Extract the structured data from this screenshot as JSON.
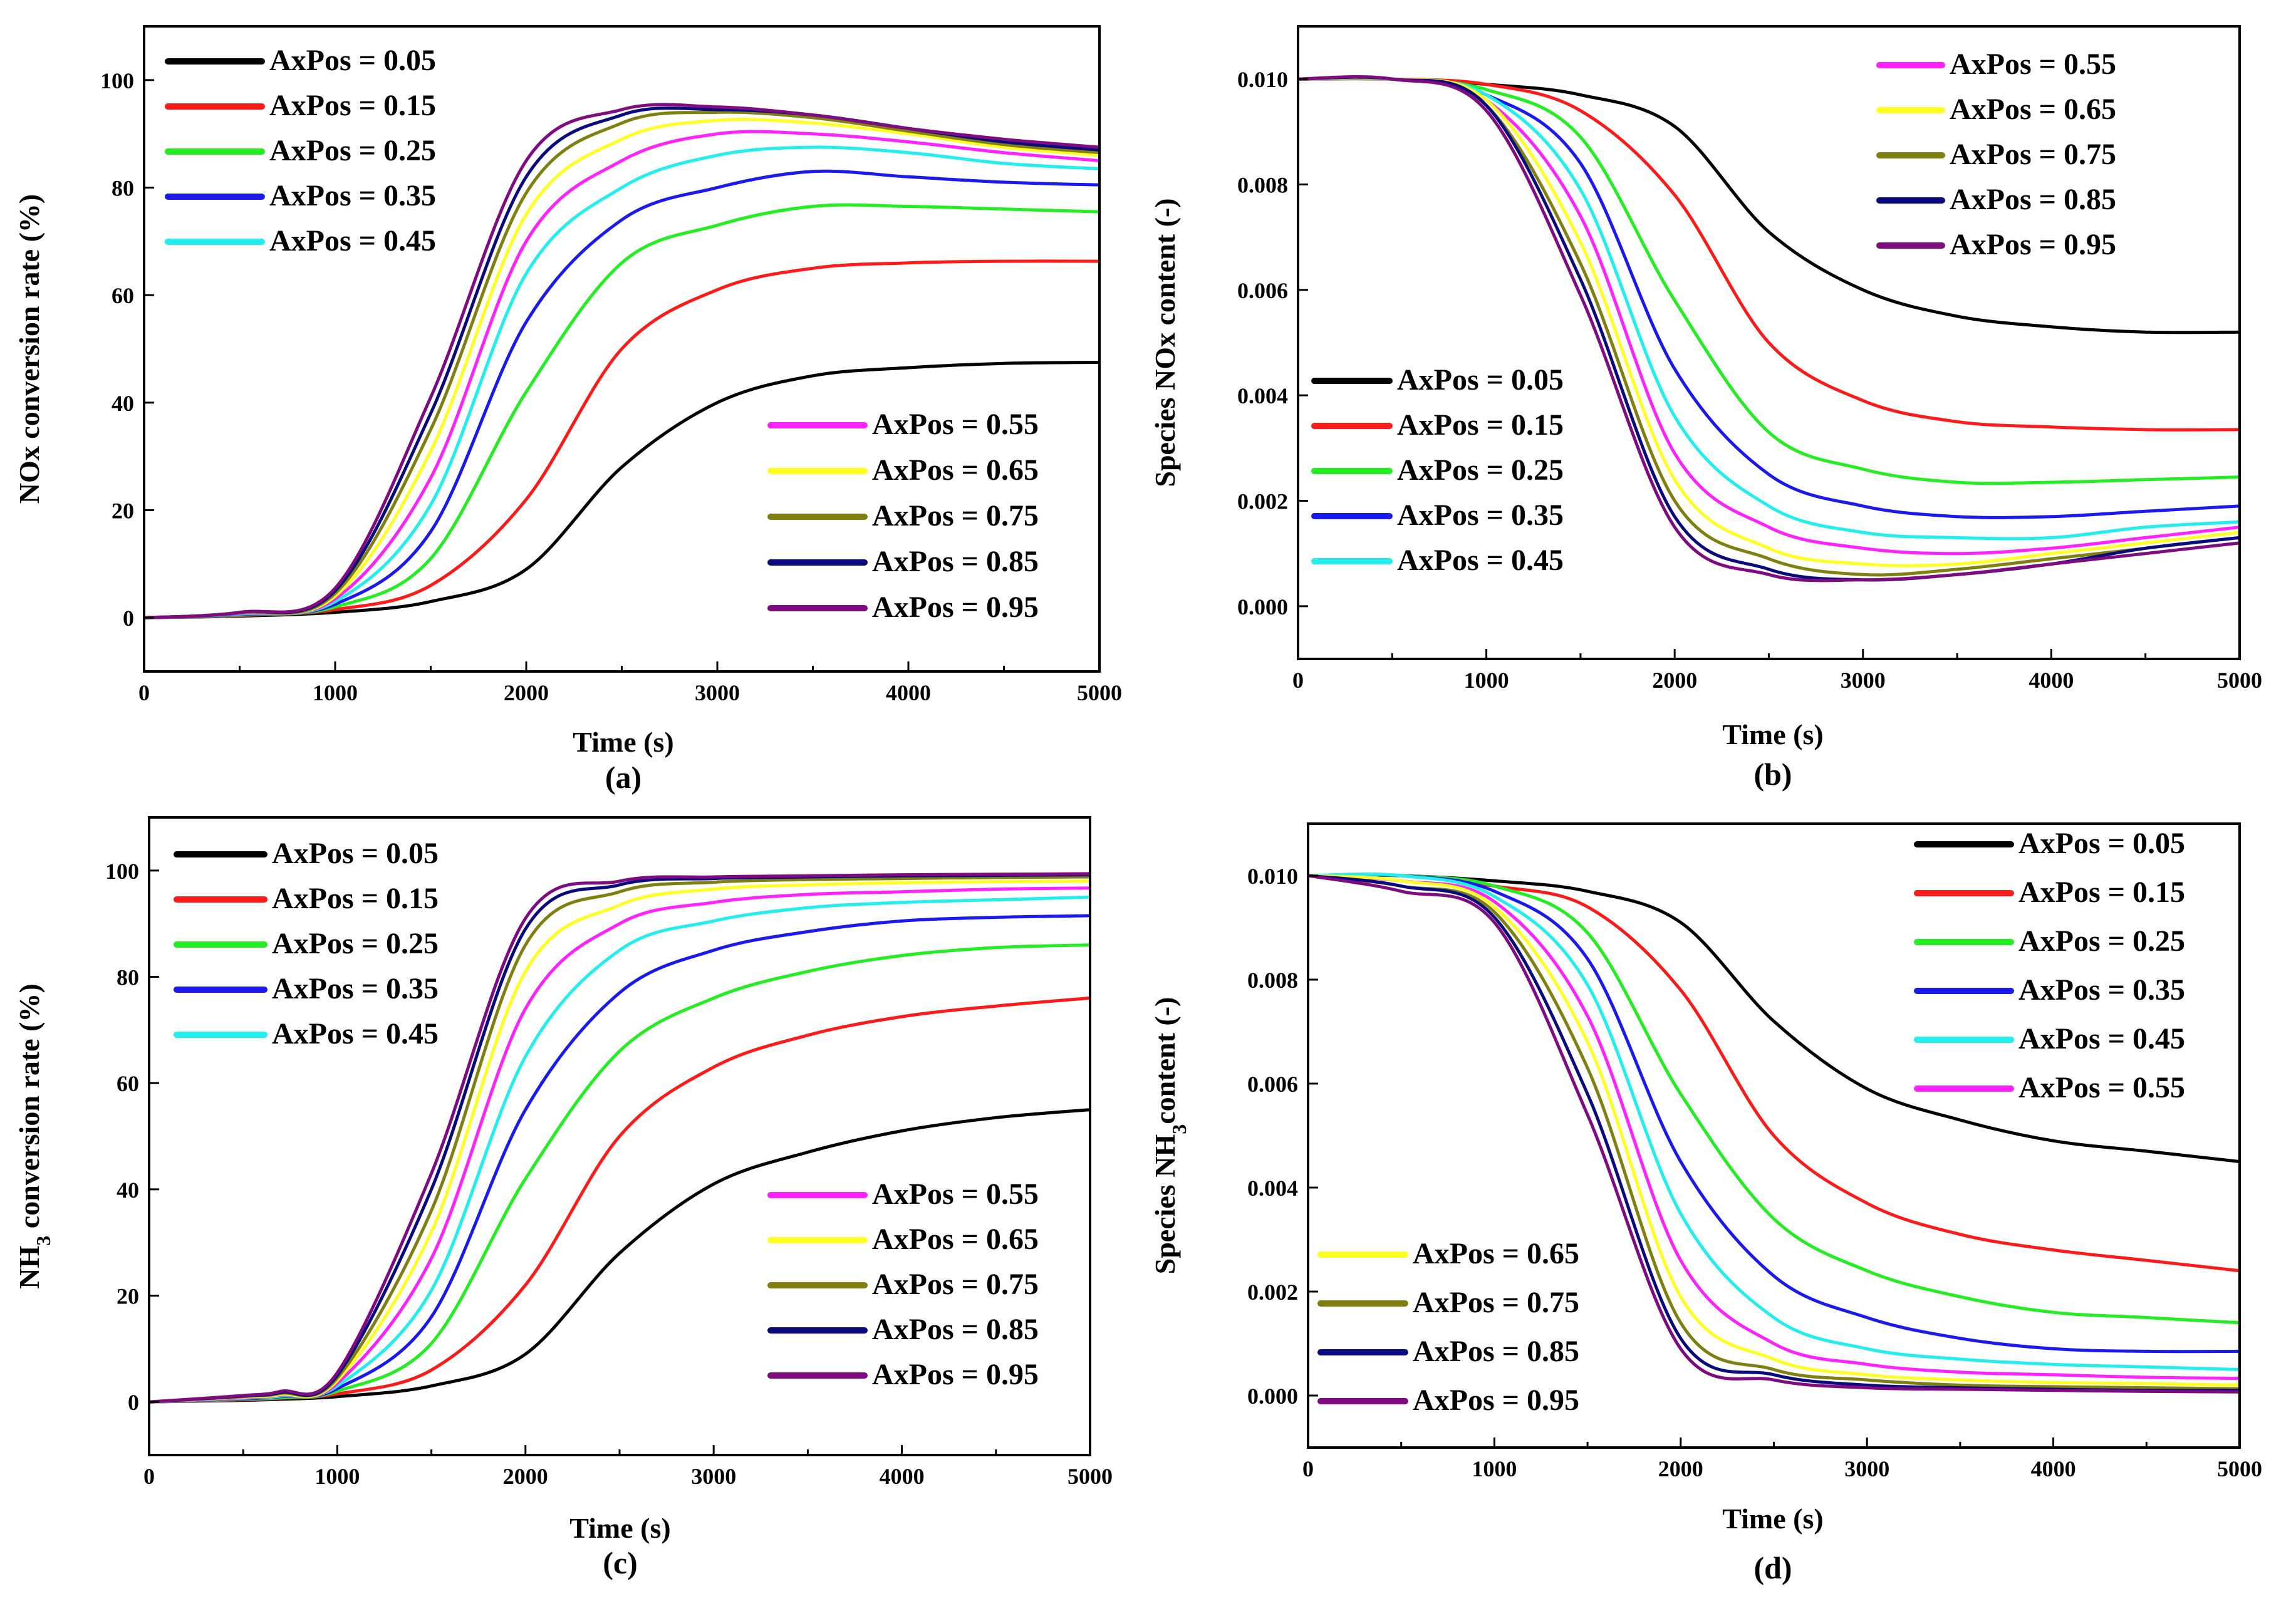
{
  "panels": [
    {
      "id": "a",
      "label": "(a)",
      "xlabel": "Time (s)",
      "ylabel": "NOx conversion rate (%)",
      "ylabel_sub": "",
      "ylabel_post": "",
      "xlim": [
        0,
        5000
      ],
      "ylim": [
        -10,
        110
      ],
      "xticks": [
        "0",
        "1000",
        "2000",
        "3000",
        "4000",
        "5000"
      ],
      "yticks": [
        "0",
        "20",
        "40",
        "60",
        "80",
        "100"
      ],
      "legend_a": [
        "0.05",
        "0.15",
        "0.25",
        "0.35",
        "0.45"
      ],
      "legend_b": [
        "0.55",
        "0.65",
        "0.75",
        "0.85",
        "0.95"
      ],
      "legend_positions": [
        "top-left",
        "bottom-right"
      ]
    },
    {
      "id": "b",
      "label": "(b)",
      "xlabel": "Time (s)",
      "ylabel": "Species NOx content (-)",
      "ylabel_sub": "",
      "ylabel_post": "",
      "xlim": [
        0,
        5000
      ],
      "ylim": [
        -0.001,
        0.011
      ],
      "xticks": [
        "0",
        "1000",
        "2000",
        "3000",
        "4000",
        "5000"
      ],
      "yticks": [
        "0.000",
        "0.002",
        "0.004",
        "0.006",
        "0.008",
        "0.010"
      ],
      "legend_a": [
        "0.55",
        "0.65",
        "0.75",
        "0.85",
        "0.95"
      ],
      "legend_b": [
        "0.05",
        "0.15",
        "0.25",
        "0.35",
        "0.45"
      ],
      "legend_positions": [
        "top-right",
        "bottom-left"
      ]
    },
    {
      "id": "c",
      "label": "(c)",
      "xlabel": "Time (s)",
      "ylabel": "NH",
      "ylabel_sub": "3",
      "ylabel_post": " conversion rate (%)",
      "xlim": [
        0,
        5000
      ],
      "ylim": [
        -10,
        110
      ],
      "xticks": [
        "0",
        "1000",
        "2000",
        "3000",
        "4000",
        "5000"
      ],
      "yticks": [
        "0",
        "20",
        "40",
        "60",
        "80",
        "100"
      ],
      "legend_a": [
        "0.05",
        "0.15",
        "0.25",
        "0.35",
        "0.45"
      ],
      "legend_b": [
        "0.55",
        "0.65",
        "0.75",
        "0.85",
        "0.95"
      ],
      "legend_positions": [
        "top-left",
        "bottom-right"
      ]
    },
    {
      "id": "d",
      "label": "(d)",
      "xlabel": "Time (s)",
      "ylabel": "Species NH",
      "ylabel_sub": "3",
      "ylabel_post": "content  (-)",
      "xlim": [
        0,
        5000
      ],
      "ylim": [
        -0.001,
        0.011
      ],
      "xticks": [
        "0",
        "1000",
        "2000",
        "3000",
        "4000",
        "5000"
      ],
      "yticks": [
        "0.000",
        "0.002",
        "0.004",
        "0.006",
        "0.008",
        "0.010"
      ],
      "legend_a": [
        "0.05",
        "0.15",
        "0.25",
        "0.35",
        "0.45",
        "0.55"
      ],
      "legend_b": [
        "0.65",
        "0.75",
        "0.85",
        "0.95"
      ],
      "legend_positions": [
        "top-right",
        "bottom-left"
      ]
    }
  ],
  "legend_prefix": "AxPos = ",
  "series_colors": {
    "0.05": "#000000",
    "0.15": "#ff1a1a",
    "0.25": "#22ee22",
    "0.35": "#1a1aee",
    "0.45": "#22eeee",
    "0.55": "#ff22ff",
    "0.65": "#ffff22",
    "0.75": "#808010",
    "0.85": "#0a0a80",
    "0.95": "#800a80"
  },
  "chart_data": [
    {
      "type": "line",
      "panel": "a",
      "title": "",
      "xlabel": "Time (s)",
      "ylabel": "NOx conversion rate (%)",
      "xlim": [
        0,
        5000
      ],
      "ylim": [
        -10,
        110
      ],
      "x": [
        0,
        500,
        1000,
        1500,
        2000,
        2500,
        3000,
        3500,
        4000,
        4500,
        5000
      ],
      "series": [
        {
          "name": "AxPos = 0.05",
          "values": [
            0,
            0.3,
            1,
            3,
            9,
            28,
            40,
            45,
            46.5,
            47.3,
            47.5
          ]
        },
        {
          "name": "AxPos = 0.15",
          "values": [
            0,
            0.4,
            1.5,
            6,
            22,
            50,
            61,
            65,
            66,
            66.3,
            66.3
          ]
        },
        {
          "name": "AxPos = 0.25",
          "values": [
            0,
            0.5,
            2,
            11,
            42,
            66,
            73,
            76.5,
            76.5,
            76,
            75.5
          ]
        },
        {
          "name": "AxPos = 0.35",
          "values": [
            0,
            0.6,
            2.5,
            16,
            55,
            74,
            80,
            83,
            82,
            81,
            80.5
          ]
        },
        {
          "name": "AxPos = 0.45",
          "values": [
            0,
            0.7,
            3,
            21,
            64,
            80,
            86,
            87.5,
            86.5,
            84.5,
            83.5
          ]
        },
        {
          "name": "AxPos = 0.55",
          "values": [
            0,
            0.8,
            3.5,
            26,
            70,
            85,
            90,
            90,
            88.5,
            86.5,
            85
          ]
        },
        {
          "name": "AxPos = 0.65",
          "values": [
            0,
            0.9,
            4,
            31,
            75,
            89,
            92.5,
            92,
            90,
            87.5,
            86
          ]
        },
        {
          "name": "AxPos = 0.75",
          "values": [
            0,
            0.9,
            4.5,
            35,
            79,
            92,
            94,
            93,
            90.5,
            88,
            86.5
          ]
        },
        {
          "name": "AxPos = 0.85",
          "values": [
            0,
            1,
            5,
            38,
            82,
            93.5,
            94.5,
            93.5,
            91,
            88.5,
            87
          ]
        },
        {
          "name": "AxPos = 0.95",
          "values": [
            0,
            1,
            5.5,
            41,
            85,
            94.5,
            95,
            93.5,
            91,
            89,
            87.5
          ]
        }
      ]
    },
    {
      "type": "line",
      "panel": "b",
      "title": "",
      "xlabel": "Time (s)",
      "ylabel": "Species NOx content (-)",
      "xlim": [
        0,
        5000
      ],
      "ylim": [
        -0.001,
        0.011
      ],
      "x": [
        0,
        500,
        1000,
        1500,
        2000,
        2500,
        3000,
        3500,
        4000,
        4500,
        5000
      ],
      "series": [
        {
          "name": "AxPos = 0.05",
          "values": [
            0.01,
            0.01,
            0.0099,
            0.0097,
            0.0091,
            0.0071,
            0.006,
            0.0055,
            0.0053,
            0.0052,
            0.0052
          ]
        },
        {
          "name": "AxPos = 0.15",
          "values": [
            0.01,
            0.01,
            0.0099,
            0.0094,
            0.0078,
            0.005,
            0.0039,
            0.0035,
            0.0034,
            0.00335,
            0.00335
          ]
        },
        {
          "name": "AxPos = 0.25",
          "values": [
            0.01,
            0.01,
            0.0098,
            0.0089,
            0.0058,
            0.0033,
            0.0026,
            0.00235,
            0.00235,
            0.0024,
            0.00245
          ]
        },
        {
          "name": "AxPos = 0.35",
          "values": [
            0.01,
            0.01,
            0.0097,
            0.0084,
            0.0045,
            0.0025,
            0.0019,
            0.0017,
            0.0017,
            0.0018,
            0.0019
          ]
        },
        {
          "name": "AxPos = 0.45",
          "values": [
            0.01,
            0.01,
            0.0097,
            0.0079,
            0.0036,
            0.0019,
            0.0014,
            0.0013,
            0.0013,
            0.0015,
            0.0016
          ]
        },
        {
          "name": "AxPos = 0.55",
          "values": [
            0.01,
            0.01,
            0.0096,
            0.0074,
            0.0029,
            0.0015,
            0.0011,
            0.001,
            0.0011,
            0.0013,
            0.0015
          ]
        },
        {
          "name": "AxPos = 0.65",
          "values": [
            0.01,
            0.01,
            0.0096,
            0.0069,
            0.0024,
            0.0011,
            0.0008,
            0.0008,
            0.001,
            0.0012,
            0.0014
          ]
        },
        {
          "name": "AxPos = 0.75",
          "values": [
            0.01,
            0.01,
            0.0095,
            0.0065,
            0.002,
            0.0009,
            0.0006,
            0.0007,
            0.0009,
            0.0011,
            0.0013
          ]
        },
        {
          "name": "AxPos = 0.85",
          "values": [
            0.01,
            0.01,
            0.0095,
            0.0062,
            0.0017,
            0.0007,
            0.0005,
            0.0006,
            0.0008,
            0.0011,
            0.0013
          ]
        },
        {
          "name": "AxPos = 0.95",
          "values": [
            0.01,
            0.01,
            0.0094,
            0.0059,
            0.0015,
            0.0006,
            0.0005,
            0.0006,
            0.0008,
            0.001,
            0.0012
          ]
        }
      ]
    },
    {
      "type": "line",
      "panel": "c",
      "title": "",
      "xlabel": "Time (s)",
      "ylabel": "NH3 conversion rate (%)",
      "xlim": [
        0,
        5000
      ],
      "ylim": [
        -10,
        110
      ],
      "x": [
        0,
        500,
        700,
        1000,
        1500,
        2000,
        2500,
        3000,
        3500,
        4000,
        4500,
        5000
      ],
      "series": [
        {
          "name": "AxPos = 0.05",
          "values": [
            0,
            0.3,
            0.5,
            1,
            3,
            9,
            28,
            41,
            47,
            51,
            53.5,
            55
          ]
        },
        {
          "name": "AxPos = 0.15",
          "values": [
            0,
            0.4,
            0.7,
            1.5,
            6,
            22,
            50,
            63,
            69,
            72.5,
            74.5,
            76
          ]
        },
        {
          "name": "AxPos = 0.25",
          "values": [
            0,
            0.5,
            0.8,
            2,
            11,
            42,
            66,
            76,
            81,
            84,
            85.5,
            86
          ]
        },
        {
          "name": "AxPos = 0.35",
          "values": [
            0,
            0.6,
            1,
            2.5,
            16,
            55,
            77,
            85,
            88.5,
            90.5,
            91.2,
            91.5
          ]
        },
        {
          "name": "AxPos = 0.45",
          "values": [
            0,
            0.7,
            1.1,
            3,
            21,
            65,
            85,
            90.5,
            93,
            94,
            94.5,
            95
          ]
        },
        {
          "name": "AxPos = 0.55",
          "values": [
            0,
            0.8,
            1.3,
            3.5,
            27,
            74,
            90,
            94,
            95.5,
            96,
            96.5,
            96.7
          ]
        },
        {
          "name": "AxPos = 0.65",
          "values": [
            0,
            0.9,
            1.4,
            4,
            32,
            81,
            93.5,
            96.5,
            97.3,
            97.7,
            97.9,
            98
          ]
        },
        {
          "name": "AxPos = 0.75",
          "values": [
            0,
            1,
            1.6,
            4.5,
            36,
            86,
            96,
            97.8,
            98.3,
            98.5,
            98.7,
            98.8
          ]
        },
        {
          "name": "AxPos = 0.85",
          "values": [
            0,
            1.1,
            1.8,
            5,
            40,
            89,
            97.3,
            98.5,
            98.8,
            99,
            99.1,
            99.2
          ]
        },
        {
          "name": "AxPos = 0.95",
          "values": [
            0,
            1.2,
            2,
            5.5,
            43,
            91,
            98,
            98.8,
            99,
            99.2,
            99.3,
            99.4
          ]
        }
      ]
    },
    {
      "type": "line",
      "panel": "d",
      "title": "",
      "xlabel": "Time (s)",
      "ylabel": "Species NH3content  (-)",
      "xlim": [
        0,
        5000
      ],
      "ylim": [
        -0.001,
        0.011
      ],
      "x": [
        0,
        500,
        1000,
        1500,
        2000,
        2500,
        3000,
        3500,
        4000,
        4500,
        5000
      ],
      "series": [
        {
          "name": "AxPos = 0.05",
          "values": [
            0.01,
            0.01,
            0.0099,
            0.0097,
            0.0091,
            0.0072,
            0.0059,
            0.0053,
            0.0049,
            0.0047,
            0.0045
          ]
        },
        {
          "name": "AxPos = 0.15",
          "values": [
            0.01,
            0.01,
            0.0098,
            0.0094,
            0.0078,
            0.005,
            0.0037,
            0.0031,
            0.0028,
            0.0026,
            0.0024
          ]
        },
        {
          "name": "AxPos = 0.25",
          "values": [
            0.01,
            0.01,
            0.0098,
            0.0089,
            0.0058,
            0.0034,
            0.0024,
            0.0019,
            0.0016,
            0.0015,
            0.0014
          ]
        },
        {
          "name": "AxPos = 0.35",
          "values": [
            0.01,
            0.01,
            0.0097,
            0.0084,
            0.0045,
            0.0023,
            0.0015,
            0.0011,
            0.0009,
            0.00085,
            0.00085
          ]
        },
        {
          "name": "AxPos = 0.45",
          "values": [
            0.01,
            0.01,
            0.0096,
            0.0079,
            0.0035,
            0.0015,
            0.0009,
            0.0007,
            0.0006,
            0.00055,
            0.0005
          ]
        },
        {
          "name": "AxPos = 0.55",
          "values": [
            0.01,
            0.0099,
            0.0095,
            0.0073,
            0.0026,
            0.001,
            0.0006,
            0.00045,
            0.0004,
            0.00035,
            0.00033
          ]
        },
        {
          "name": "AxPos = 0.65",
          "values": [
            0.01,
            0.0099,
            0.0094,
            0.0068,
            0.0019,
            0.0007,
            0.0004,
            0.0003,
            0.00025,
            0.00023,
            0.0002
          ]
        },
        {
          "name": "AxPos = 0.75",
          "values": [
            0.01,
            0.0098,
            0.0093,
            0.0063,
            0.0014,
            0.0005,
            0.0003,
            0.0002,
            0.00017,
            0.00015,
            0.00013
          ]
        },
        {
          "name": "AxPos = 0.85",
          "values": [
            0.01,
            0.0098,
            0.0092,
            0.0058,
            0.0011,
            0.0004,
            0.0002,
            0.00015,
            0.00012,
            0.0001,
            0.0001
          ]
        },
        {
          "name": "AxPos = 0.95",
          "values": [
            0.01,
            0.0097,
            0.0091,
            0.0054,
            0.0009,
            0.0003,
            0.00015,
            0.00012,
            0.0001,
            8e-05,
            7e-05
          ]
        }
      ]
    }
  ]
}
